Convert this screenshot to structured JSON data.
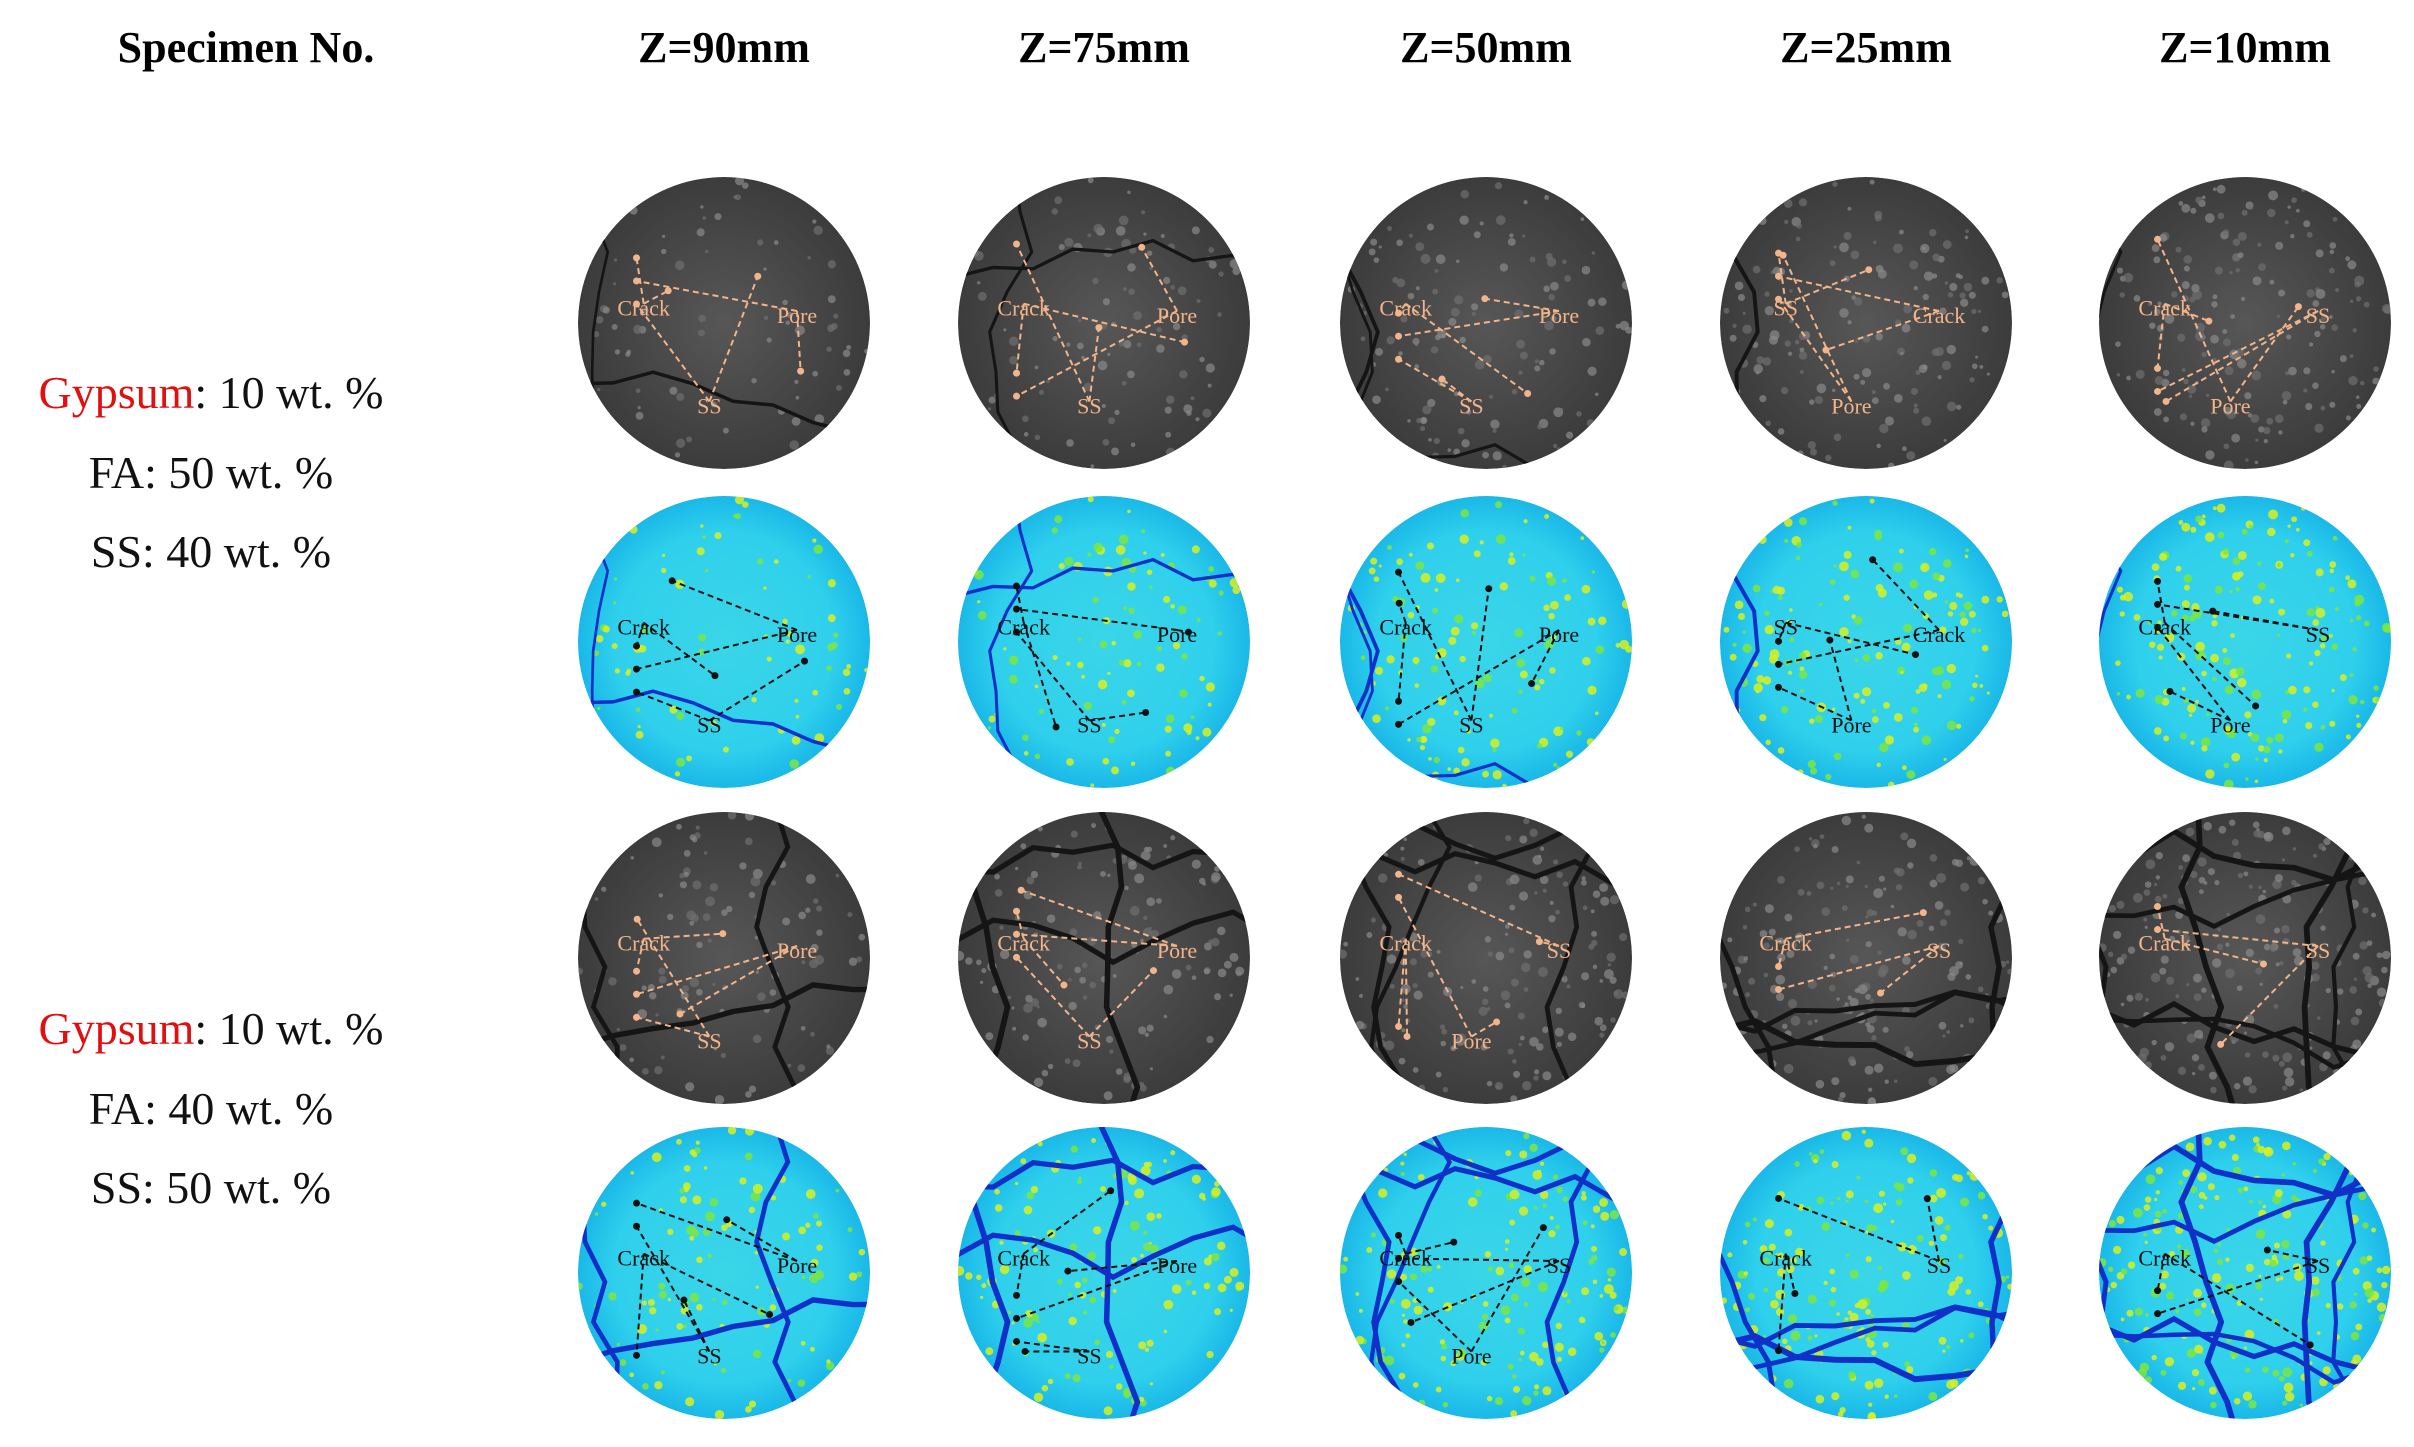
{
  "header": {
    "specimen_label": "Specimen No.",
    "columns": [
      "Z=90mm",
      "Z=75mm",
      "Z=50mm",
      "Z=25mm",
      "Z=10mm"
    ]
  },
  "groups": [
    {
      "composition": [
        {
          "name": "Gypsum",
          "text": ": 10 wt. %"
        },
        {
          "name": "FA",
          "text": ": 50 wt. %"
        },
        {
          "name": "SS",
          "text": ": 40 wt. %"
        }
      ],
      "rows": [
        [
          [
            "Crack",
            "Pore",
            "SS"
          ],
          [
            "Crack",
            "Pore",
            "SS"
          ],
          [
            "Crack",
            "Pore",
            "SS"
          ],
          [
            "SS",
            "Crack",
            "Pore"
          ],
          [
            "Crack",
            "SS",
            "Pore"
          ]
        ],
        [
          [
            "Crack",
            "Pore",
            "SS"
          ],
          [
            "Crack",
            "Pore",
            "SS"
          ],
          [
            "Crack",
            "Pore",
            "SS"
          ],
          [
            "SS",
            "Crack",
            "Pore"
          ],
          [
            "Crack",
            "SS",
            "Pore"
          ]
        ]
      ]
    },
    {
      "composition": [
        {
          "name": "Gypsum",
          "text": ": 10 wt. %"
        },
        {
          "name": "FA",
          "text": ": 40 wt. %"
        },
        {
          "name": "SS",
          "text": ": 50 wt. %"
        }
      ],
      "rows": [
        [
          [
            "Crack",
            "Pore",
            "SS"
          ],
          [
            "Crack",
            "Pore",
            "SS"
          ],
          [
            "Crack",
            "SS",
            "Pore"
          ],
          [
            "Crack",
            "SS"
          ],
          [
            "Crack",
            "SS"
          ]
        ],
        [
          [
            "Crack",
            "Pore",
            "SS"
          ],
          [
            "Crack",
            "Pore",
            "SS"
          ],
          [
            "Crack",
            "SS",
            "Pore"
          ],
          [
            "Crack",
            "SS"
          ],
          [
            "Crack",
            "SS"
          ]
        ]
      ]
    }
  ]
}
